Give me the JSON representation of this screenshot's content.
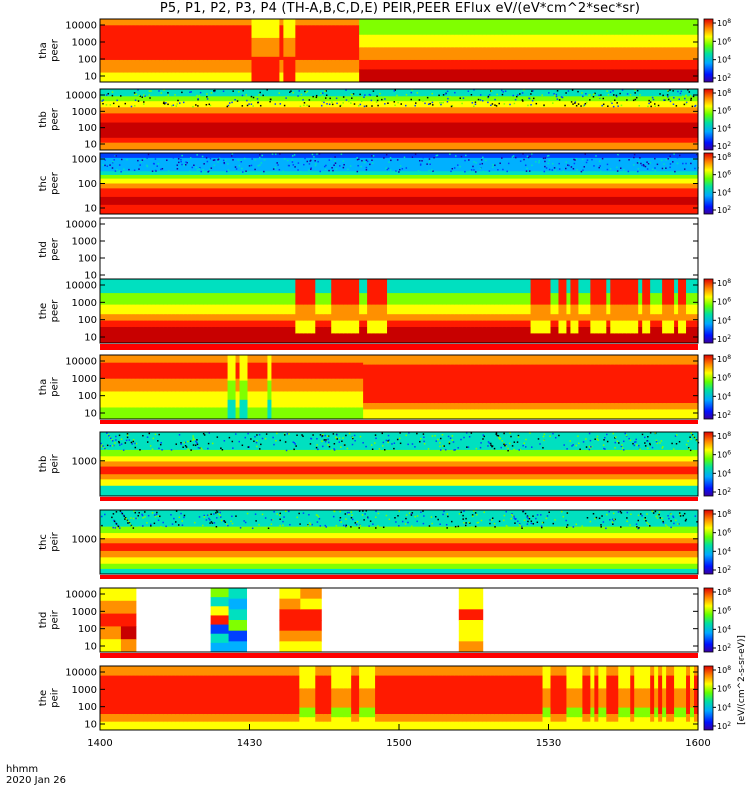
{
  "title": "P5, P1, P2, P3, P4 (TH-A,B,C,D,E) PEIR,PEER EFlux eV/(eV*cm^2*sec*sr)",
  "time_axis": {
    "label": "hhmm",
    "date": "2020 Jan 26",
    "ticks": [
      "1400",
      "1430",
      "1500",
      "1530",
      "1600"
    ]
  },
  "colorbar_label": "[eV/(cm^2-s-sr-eV)]",
  "chart_data": {
    "type": "heatmap",
    "x_range": [
      "1400",
      "1600"
    ],
    "colorbar_ticks": [
      "10^8",
      "10^6",
      "10^4",
      "10^2"
    ],
    "panels": [
      {
        "probe": "tha",
        "species": "peer",
        "yticks": [
          "10000",
          "1000",
          "100",
          "10"
        ],
        "colorbar": "partial",
        "pattern": "tha_peer"
      },
      {
        "probe": "thb",
        "species": "peer",
        "yticks": [
          "10000",
          "1000",
          "100",
          "10"
        ],
        "colorbar": "full",
        "pattern": "thb_peer"
      },
      {
        "probe": "thc",
        "species": "peer",
        "yticks": [
          "1000",
          "100",
          "10"
        ],
        "colorbar": "full",
        "pattern": "thc_peer"
      },
      {
        "probe": "thd",
        "species": "peer",
        "yticks": [
          "10000",
          "1000",
          "100",
          "10"
        ],
        "colorbar": "none",
        "pattern": "empty"
      },
      {
        "probe": "the",
        "species": "peer",
        "yticks": [
          "10000",
          "1000",
          "100",
          "10"
        ],
        "colorbar": "full",
        "pattern": "the_peer"
      },
      {
        "probe": "tha",
        "species": "peir",
        "yticks": [
          "10000",
          "1000",
          "100",
          "10"
        ],
        "colorbar": "full",
        "pattern": "tha_peir"
      },
      {
        "probe": "thb",
        "species": "peir",
        "yticks": [
          "1000"
        ],
        "colorbar": "full",
        "pattern": "thb_peir"
      },
      {
        "probe": "thc",
        "species": "peir",
        "yticks": [
          "1000"
        ],
        "colorbar": "full",
        "pattern": "thc_peir"
      },
      {
        "probe": "thd",
        "species": "peir",
        "yticks": [
          "10000",
          "1000",
          "100",
          "10"
        ],
        "colorbar": "full",
        "pattern": "thd_peir"
      },
      {
        "probe": "the",
        "species": "peir",
        "yticks": [
          "10000",
          "1000",
          "100",
          "10"
        ],
        "colorbar": "full",
        "pattern": "the_peir"
      }
    ]
  }
}
